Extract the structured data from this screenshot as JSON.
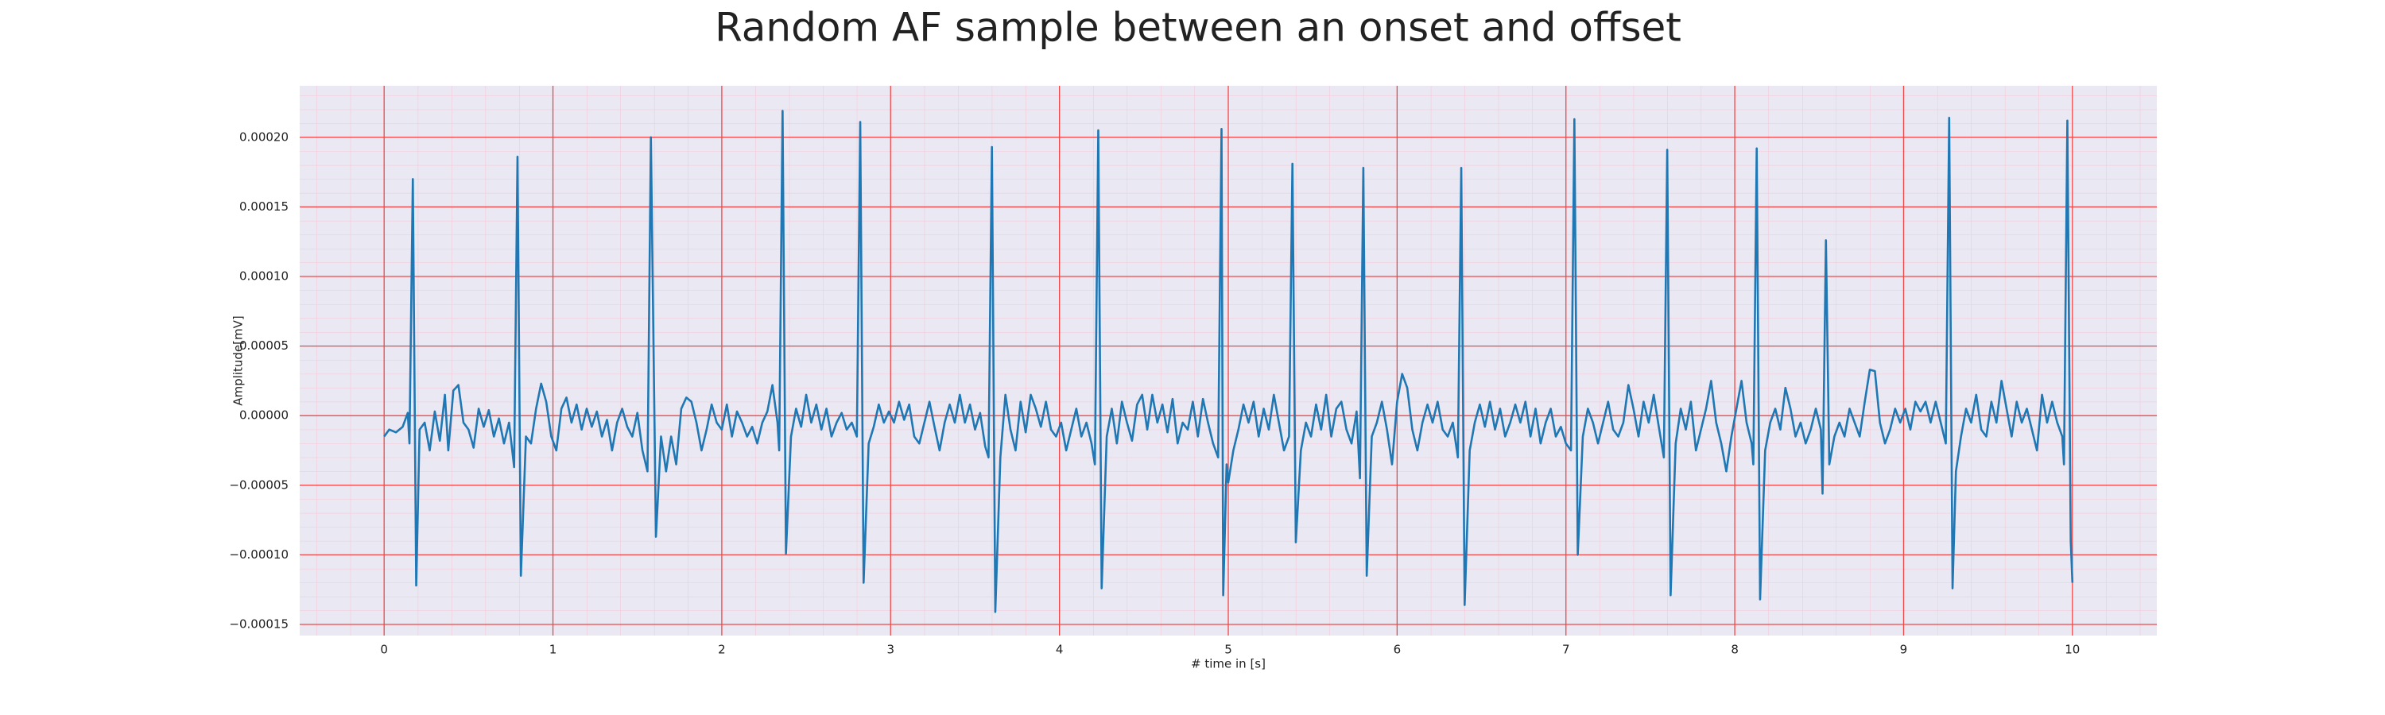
{
  "chart_data": {
    "type": "line",
    "title": "Random AF sample between an onset and offset",
    "x_label": "# time in [s]",
    "y_label": "Amplitude[mV]",
    "color": "#1f77b4",
    "grid": true,
    "minor_grid": true,
    "xlim": [
      -0.5,
      10.5
    ],
    "xticks": [
      0,
      1,
      2,
      3,
      4,
      5,
      6,
      7,
      8,
      9,
      10
    ],
    "ylim": [
      -0.000158,
      0.000237
    ],
    "yticks": [
      {
        "value": -0.00015,
        "label": "−0.00015"
      },
      {
        "value": -0.0001,
        "label": "−0.00010"
      },
      {
        "value": -5e-05,
        "label": "−0.00005"
      },
      {
        "value": 0,
        "label": "0.00000"
      },
      {
        "value": 5e-05,
        "label": "0.00005"
      },
      {
        "value": 0.0001,
        "label": "0.00010"
      },
      {
        "value": 0.00015,
        "label": "0.00015"
      },
      {
        "value": 0.0002,
        "label": "0.00020"
      }
    ],
    "x": [
      0.0,
      0.03,
      0.07,
      0.11,
      0.14,
      0.15,
      0.17,
      0.19,
      0.21,
      0.24,
      0.27,
      0.3,
      0.33,
      0.36,
      0.38,
      0.41,
      0.44,
      0.47,
      0.5,
      0.53,
      0.56,
      0.59,
      0.62,
      0.65,
      0.68,
      0.71,
      0.74,
      0.77,
      0.79,
      0.81,
      0.84,
      0.87,
      0.9,
      0.93,
      0.96,
      0.99,
      1.02,
      1.05,
      1.08,
      1.11,
      1.14,
      1.17,
      1.2,
      1.23,
      1.26,
      1.29,
      1.32,
      1.35,
      1.38,
      1.41,
      1.44,
      1.47,
      1.5,
      1.53,
      1.56,
      1.58,
      1.61,
      1.64,
      1.67,
      1.7,
      1.73,
      1.76,
      1.79,
      1.82,
      1.85,
      1.88,
      1.91,
      1.94,
      1.97,
      2.0,
      2.03,
      2.06,
      2.09,
      2.12,
      2.15,
      2.18,
      2.21,
      2.24,
      2.27,
      2.3,
      2.33,
      2.34,
      2.36,
      2.38,
      2.41,
      2.44,
      2.47,
      2.5,
      2.53,
      2.56,
      2.59,
      2.62,
      2.65,
      2.68,
      2.71,
      2.74,
      2.77,
      2.8,
      2.82,
      2.84,
      2.87,
      2.9,
      2.93,
      2.96,
      2.99,
      3.02,
      3.05,
      3.08,
      3.11,
      3.14,
      3.17,
      3.2,
      3.23,
      3.26,
      3.29,
      3.32,
      3.35,
      3.38,
      3.41,
      3.44,
      3.47,
      3.5,
      3.53,
      3.56,
      3.58,
      3.6,
      3.62,
      3.65,
      3.68,
      3.71,
      3.74,
      3.77,
      3.8,
      3.83,
      3.86,
      3.89,
      3.92,
      3.95,
      3.98,
      4.01,
      4.04,
      4.07,
      4.1,
      4.13,
      4.16,
      4.19,
      4.21,
      4.23,
      4.25,
      4.28,
      4.31,
      4.34,
      4.37,
      4.4,
      4.43,
      4.46,
      4.49,
      4.52,
      4.55,
      4.58,
      4.61,
      4.64,
      4.67,
      4.7,
      4.73,
      4.76,
      4.79,
      4.82,
      4.85,
      4.88,
      4.91,
      4.94,
      4.96,
      4.97,
      4.99,
      5.0,
      5.03,
      5.06,
      5.09,
      5.12,
      5.15,
      5.18,
      5.21,
      5.24,
      5.27,
      5.3,
      5.33,
      5.36,
      5.38,
      5.4,
      5.43,
      5.46,
      5.49,
      5.52,
      5.55,
      5.58,
      5.61,
      5.64,
      5.67,
      5.7,
      5.73,
      5.76,
      5.78,
      5.8,
      5.82,
      5.85,
      5.88,
      5.91,
      5.94,
      5.97,
      6.0,
      6.03,
      6.06,
      6.09,
      6.12,
      6.15,
      6.18,
      6.21,
      6.24,
      6.27,
      6.3,
      6.33,
      6.36,
      6.38,
      6.4,
      6.43,
      6.46,
      6.49,
      6.52,
      6.55,
      6.58,
      6.61,
      6.64,
      6.67,
      6.7,
      6.73,
      6.76,
      6.79,
      6.82,
      6.85,
      6.88,
      6.91,
      6.94,
      6.97,
      7.0,
      7.03,
      7.05,
      7.07,
      7.1,
      7.13,
      7.16,
      7.19,
      7.22,
      7.25,
      7.28,
      7.31,
      7.34,
      7.37,
      7.4,
      7.43,
      7.46,
      7.49,
      7.52,
      7.55,
      7.58,
      7.6,
      7.62,
      7.65,
      7.68,
      7.71,
      7.74,
      7.77,
      7.8,
      7.83,
      7.86,
      7.89,
      7.92,
      7.95,
      7.98,
      8.01,
      8.04,
      8.07,
      8.1,
      8.11,
      8.13,
      8.15,
      8.18,
      8.21,
      8.24,
      8.27,
      8.3,
      8.33,
      8.36,
      8.39,
      8.42,
      8.45,
      8.48,
      8.51,
      8.52,
      8.54,
      8.56,
      8.59,
      8.62,
      8.65,
      8.68,
      8.71,
      8.74,
      8.77,
      8.8,
      8.83,
      8.86,
      8.89,
      8.92,
      8.95,
      8.98,
      9.01,
      9.04,
      9.07,
      9.1,
      9.13,
      9.16,
      9.19,
      9.22,
      9.25,
      9.27,
      9.29,
      9.31,
      9.34,
      9.37,
      9.4,
      9.43,
      9.46,
      9.49,
      9.52,
      9.55,
      9.58,
      9.61,
      9.64,
      9.67,
      9.7,
      9.73,
      9.76,
      9.79,
      9.82,
      9.85,
      9.88,
      9.91,
      9.94,
      9.95,
      9.97,
      9.99,
      10.0
    ],
    "values": [
      -1.5e-05,
      -1e-05,
      -1.2e-05,
      -8e-06,
      2e-06,
      -2e-05,
      0.00017,
      -0.000122,
      -1e-05,
      -5e-06,
      -2.5e-05,
      3e-06,
      -1.8e-05,
      1.5e-05,
      -2.5e-05,
      1.8e-05,
      2.2e-05,
      -5e-06,
      -1e-05,
      -2.3e-05,
      5e-06,
      -8e-06,
      4e-06,
      -1.5e-05,
      -2e-06,
      -2e-05,
      -5e-06,
      -3.7e-05,
      0.000186,
      -0.000115,
      -1.5e-05,
      -2e-05,
      5e-06,
      2.3e-05,
      1e-05,
      -1.5e-05,
      -2.5e-05,
      5e-06,
      1.3e-05,
      -5e-06,
      8e-06,
      -1e-05,
      5e-06,
      -8e-06,
      3e-06,
      -1.5e-05,
      -3e-06,
      -2.5e-05,
      -5e-06,
      5e-06,
      -8e-06,
      -1.5e-05,
      2e-06,
      -2.5e-05,
      -4e-05,
      0.0002,
      -8.7e-05,
      -1.5e-05,
      -4e-05,
      -1.5e-05,
      -3.5e-05,
      5e-06,
      1.3e-05,
      1e-05,
      -5e-06,
      -2.5e-05,
      -1e-05,
      8e-06,
      -5e-06,
      -1e-05,
      8e-06,
      -1.5e-05,
      3e-06,
      -5e-06,
      -1.5e-05,
      -8e-06,
      -2e-05,
      -5e-06,
      3e-06,
      2.2e-05,
      -5e-06,
      -2.5e-05,
      0.000219,
      -9.9e-05,
      -1.5e-05,
      5e-06,
      -8e-06,
      1.5e-05,
      -5e-06,
      8e-06,
      -1e-05,
      5e-06,
      -1.5e-05,
      -5e-06,
      2e-06,
      -1e-05,
      -5e-06,
      -1.5e-05,
      0.000211,
      -0.00012,
      -2e-05,
      -8e-06,
      8e-06,
      -5e-06,
      3e-06,
      -5e-06,
      1e-05,
      -3e-06,
      8e-06,
      -1.5e-05,
      -2e-05,
      -5e-06,
      1e-05,
      -8e-06,
      -2.5e-05,
      -5e-06,
      8e-06,
      -5e-06,
      1.5e-05,
      -5e-06,
      8e-06,
      -1e-05,
      2e-06,
      -2.2e-05,
      -3e-05,
      0.000193,
      -0.000141,
      -3e-05,
      1.5e-05,
      -1e-05,
      -2.5e-05,
      1e-05,
      -1.2e-05,
      1.5e-05,
      5e-06,
      -8e-06,
      1e-05,
      -1e-05,
      -1.5e-05,
      -5e-06,
      -2.5e-05,
      -1e-05,
      5e-06,
      -1.5e-05,
      -5e-06,
      -2e-05,
      -3.5e-05,
      0.000205,
      -0.000124,
      -1.5e-05,
      5e-06,
      -2e-05,
      1e-05,
      -5e-06,
      -1.8e-05,
      8e-06,
      1.5e-05,
      -1e-05,
      1.5e-05,
      -5e-06,
      8e-06,
      -1.2e-05,
      1.2e-05,
      -2e-05,
      -5e-06,
      -1e-05,
      1e-05,
      -1.5e-05,
      1.2e-05,
      -5e-06,
      -2e-05,
      -3e-05,
      0.000206,
      -0.000129,
      -3.5e-05,
      -4.8e-05,
      -2.5e-05,
      -1e-05,
      8e-06,
      -5e-06,
      1e-05,
      -1.5e-05,
      5e-06,
      -1e-05,
      1.5e-05,
      -5e-06,
      -2.5e-05,
      -1.5e-05,
      0.000181,
      -9.1e-05,
      -2.5e-05,
      -5e-06,
      -1.5e-05,
      8e-06,
      -1e-05,
      1.5e-05,
      -1.5e-05,
      5e-06,
      1e-05,
      -1e-05,
      -2e-05,
      3e-06,
      -4.5e-05,
      0.000178,
      -0.000115,
      -1.5e-05,
      -5e-06,
      1e-05,
      -1e-05,
      -3.5e-05,
      1e-05,
      3e-05,
      2e-05,
      -1e-05,
      -2.5e-05,
      -5e-06,
      8e-06,
      -5e-06,
      1e-05,
      -1e-05,
      -1.5e-05,
      -5e-06,
      -3e-05,
      0.000178,
      -0.000136,
      -2.5e-05,
      -5e-06,
      8e-06,
      -8e-06,
      1e-05,
      -1e-05,
      5e-06,
      -1.5e-05,
      -5e-06,
      8e-06,
      -5e-06,
      1e-05,
      -1.5e-05,
      5e-06,
      -2e-05,
      -5e-06,
      5e-06,
      -1.5e-05,
      -8e-06,
      -2e-05,
      -2.5e-05,
      0.000213,
      -0.0001,
      -1.5e-05,
      5e-06,
      -5e-06,
      -2e-05,
      -5e-06,
      1e-05,
      -1e-05,
      -1.5e-05,
      -5e-06,
      2.2e-05,
      5e-06,
      -1.5e-05,
      1e-05,
      -5e-06,
      1.5e-05,
      -8e-06,
      -3e-05,
      0.000191,
      -0.000129,
      -2e-05,
      5e-06,
      -1e-05,
      1e-05,
      -2.5e-05,
      -1e-05,
      5e-06,
      2.5e-05,
      -5e-06,
      -2e-05,
      -4e-05,
      -1.5e-05,
      5e-06,
      2.5e-05,
      -5e-06,
      -2e-05,
      -3.5e-05,
      0.000192,
      -0.000132,
      -2.5e-05,
      -5e-06,
      5e-06,
      -1e-05,
      2e-05,
      5e-06,
      -1.5e-05,
      -5e-06,
      -2e-05,
      -1e-05,
      5e-06,
      -1e-05,
      -5.6e-05,
      0.000126,
      -3.5e-05,
      -1.5e-05,
      -5e-06,
      -1.5e-05,
      5e-06,
      -5e-06,
      -1.5e-05,
      1e-05,
      3.3e-05,
      3.2e-05,
      -5e-06,
      -2e-05,
      -1e-05,
      5e-06,
      -5e-06,
      5e-06,
      -1e-05,
      1e-05,
      3e-06,
      1e-05,
      -5e-06,
      1e-05,
      -5e-06,
      -2e-05,
      0.000214,
      -0.000124,
      -4e-05,
      -1.5e-05,
      5e-06,
      -5e-06,
      1.5e-05,
      -1e-05,
      -1.5e-05,
      1e-05,
      -5e-06,
      2.5e-05,
      5e-06,
      -1.5e-05,
      1e-05,
      -5e-06,
      5e-06,
      -1e-05,
      -2.5e-05,
      1.5e-05,
      -5e-06,
      1e-05,
      -5e-06,
      -1.5e-05,
      -3.5e-05,
      0.000212,
      -9e-05,
      -0.00012
    ]
  }
}
